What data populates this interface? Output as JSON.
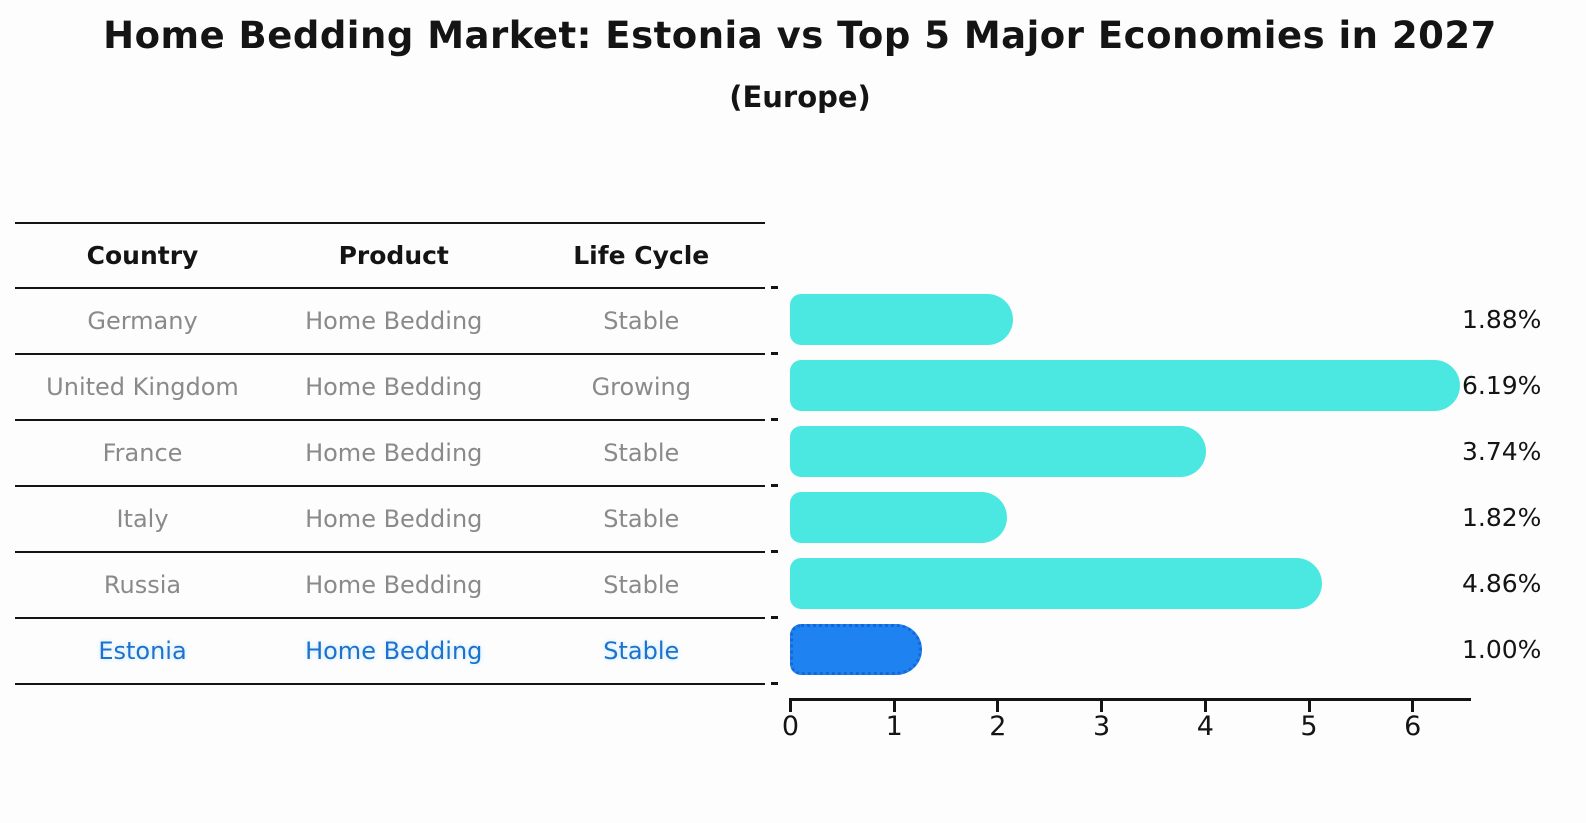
{
  "title": "Home Bedding Market: Estonia vs Top 5 Major Economies in 2027",
  "subtitle": "(Europe)",
  "table": {
    "headers": [
      "Country",
      "Product",
      "Life Cycle"
    ],
    "rows": [
      {
        "country": "Germany",
        "product": "Home Bedding",
        "life_cycle": "Stable",
        "highlight": false
      },
      {
        "country": "United Kingdom",
        "product": "Home Bedding",
        "life_cycle": "Growing",
        "highlight": false
      },
      {
        "country": "France",
        "product": "Home Bedding",
        "life_cycle": "Stable",
        "highlight": false
      },
      {
        "country": "Italy",
        "product": "Home Bedding",
        "life_cycle": "Stable",
        "highlight": false
      },
      {
        "country": "Russia",
        "product": "Home Bedding",
        "life_cycle": "Stable",
        "highlight": false
      },
      {
        "country": "Estonia",
        "product": "Home Bedding",
        "life_cycle": "Stable",
        "highlight": true
      }
    ]
  },
  "chart_data": {
    "type": "bar",
    "orientation": "horizontal",
    "title": "Home Bedding Market: Estonia vs Top 5 Major Economies in 2027 (Europe)",
    "categories": [
      "Germany",
      "United Kingdom",
      "France",
      "Italy",
      "Russia",
      "Estonia"
    ],
    "values": [
      1.88,
      6.19,
      3.74,
      1.82,
      4.86,
      1.0
    ],
    "labels": [
      "1.88%",
      "6.19%",
      "3.74%",
      "1.82%",
      "4.86%",
      "1.00%"
    ],
    "xlabel": "",
    "ylabel": "",
    "x_ticks": [
      "0",
      "1",
      "2",
      "3",
      "4",
      "5",
      "6"
    ],
    "xlim": [
      0,
      6.55
    ],
    "grid": false,
    "legend": false,
    "bar_color": "#4be8e2",
    "highlight_color": "#1e82f0",
    "highlight_border_color": "#1668d8",
    "highlight_index": 5
  },
  "colors": {
    "background": "#fdfdfd",
    "table_text": "#8a8a8a",
    "header_text": "#141414",
    "highlight_text": "#1d72ce",
    "axis": "#141414"
  }
}
